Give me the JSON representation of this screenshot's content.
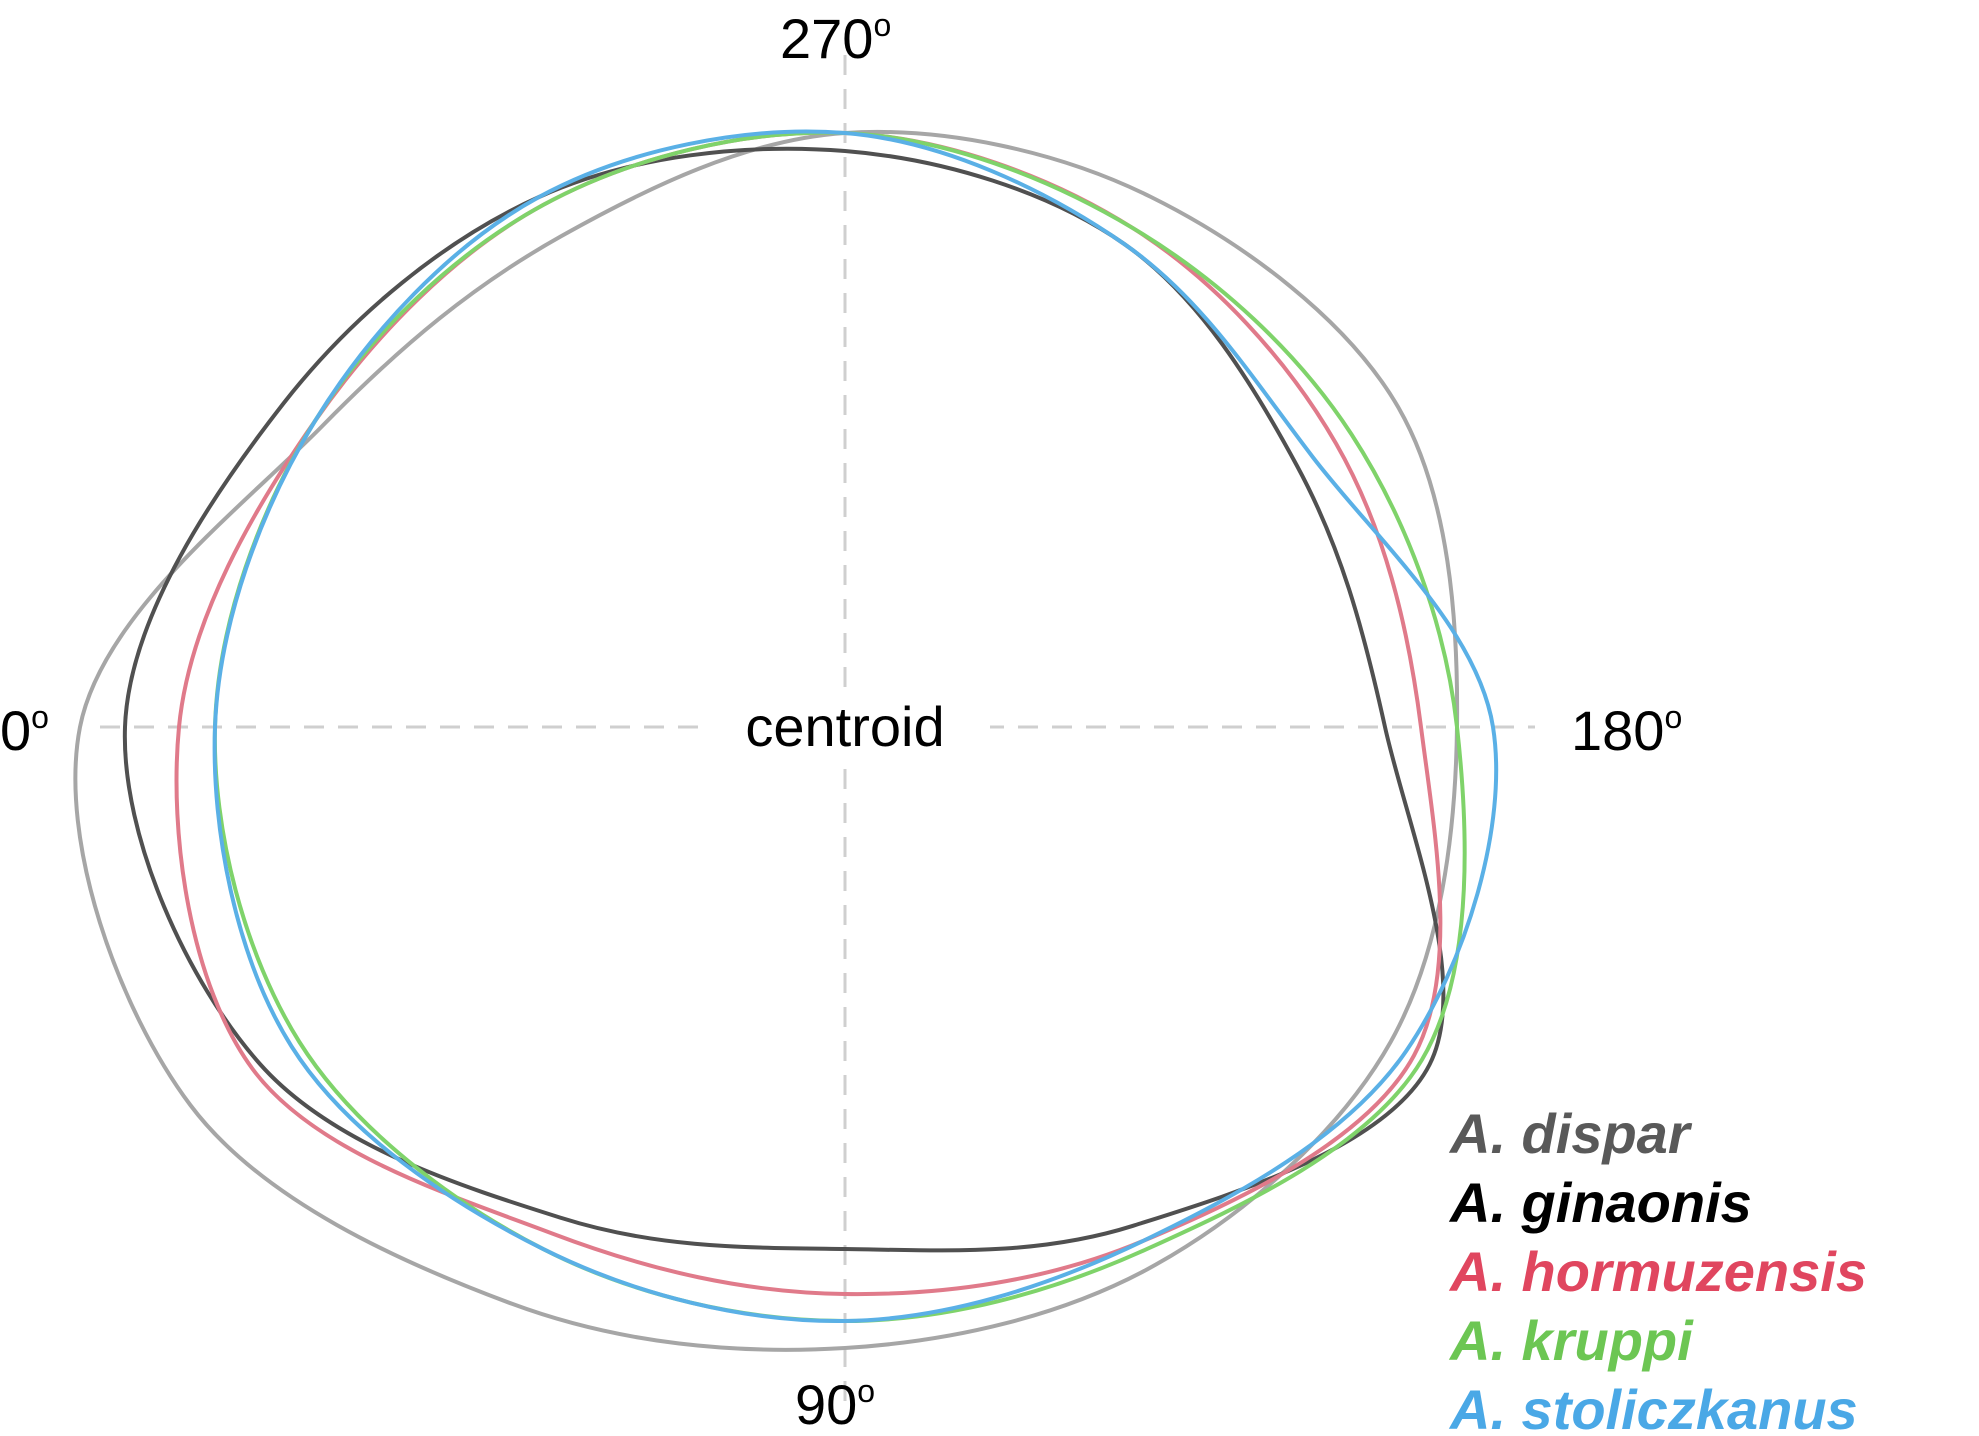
{
  "chart_data": {
    "type": "line",
    "subtype": "polar-outline",
    "center_label": "centroid",
    "angle_labels": [
      {
        "value": "0",
        "sup": "o"
      },
      {
        "value": "90",
        "sup": "o"
      },
      {
        "value": "180",
        "sup": "o"
      },
      {
        "value": "270",
        "sup": "o"
      }
    ],
    "angle_unit": "degrees",
    "grid": "dashed crosshair through centroid",
    "legend_position": "bottom-right",
    "angles": [
      0,
      30,
      60,
      90,
      120,
      150,
      180,
      210,
      240,
      270,
      300,
      330
    ],
    "series": [
      {
        "name": "A. dispar",
        "color": "#a6a6a6",
        "legend_color": "#595959",
        "radius": [
          0.85,
          0.84,
          0.74,
          0.69,
          0.69,
          0.7,
          0.68,
          0.71,
          0.68,
          0.66,
          0.63,
          0.67
        ]
      },
      {
        "name": "A. ginaonis",
        "color": "#505050",
        "legend_color": "#000000",
        "radius": [
          0.8,
          0.75,
          0.63,
          0.58,
          0.64,
          0.75,
          0.6,
          0.58,
          0.62,
          0.64,
          0.68,
          0.72
        ]
      },
      {
        "name": "A. hormuzensis",
        "color": "#e07a8a",
        "legend_color": "#e0465f",
        "radius": [
          0.74,
          0.76,
          0.65,
          0.63,
          0.66,
          0.73,
          0.64,
          0.63,
          0.64,
          0.66,
          0.67,
          0.68
        ]
      },
      {
        "name": "A. kruppi",
        "color": "#7fd36a",
        "legend_color": "#6cc653",
        "radius": [
          0.7,
          0.7,
          0.67,
          0.66,
          0.67,
          0.74,
          0.68,
          0.65,
          0.64,
          0.66,
          0.67,
          0.68
        ]
      },
      {
        "name": "A. stoliczkanus",
        "color": "#5ab0e6",
        "legend_color": "#4aa8e6",
        "radius": [
          0.7,
          0.71,
          0.67,
          0.66,
          0.66,
          0.72,
          0.72,
          0.6,
          0.62,
          0.66,
          0.68,
          0.68
        ]
      }
    ]
  }
}
